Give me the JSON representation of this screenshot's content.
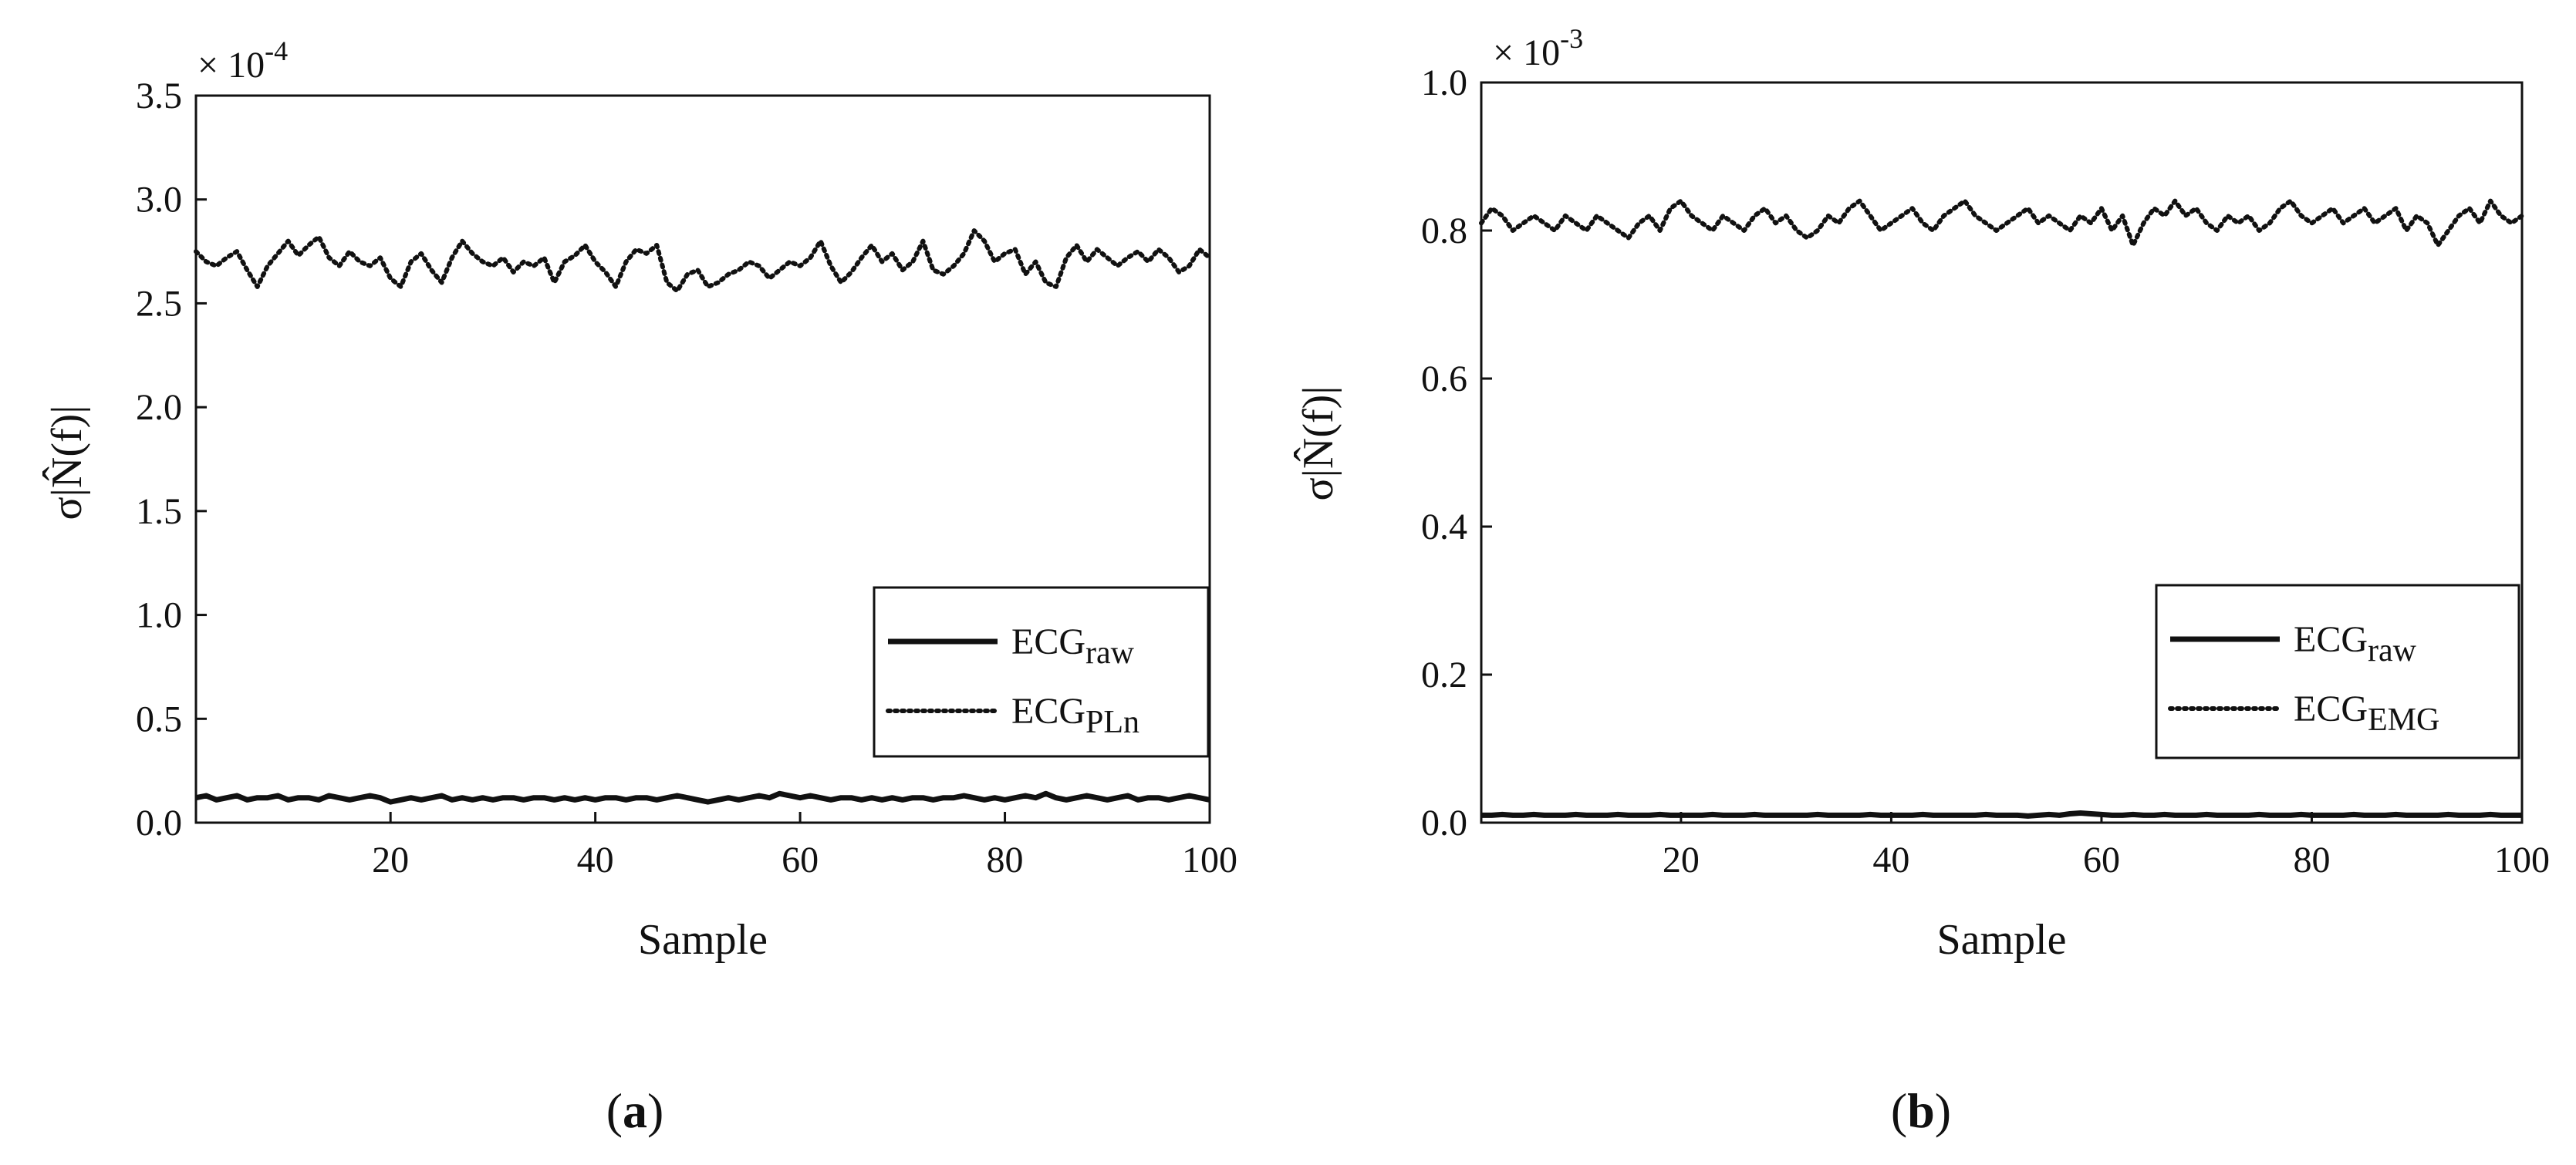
{
  "chart_data": [
    {
      "type": "line",
      "panel_label": "(a)",
      "panel_letter": "a",
      "xlabel": "Sample",
      "ylabel": "σ|N̂(f)|",
      "scale_note": "× 10",
      "scale_exponent": "-4",
      "xlim": [
        1,
        100
      ],
      "ylim": [
        0.0,
        3.5
      ],
      "xticks": [
        20,
        40,
        60,
        80,
        100
      ],
      "yticks": [
        0.0,
        0.5,
        1.0,
        1.5,
        2.0,
        2.5,
        3.0,
        3.5
      ],
      "grid": false,
      "legend_position": "lower-right",
      "series": [
        {
          "name": "ECGraw",
          "name_base": "ECG",
          "name_sub": "raw",
          "style": "solid",
          "color": "#111111",
          "values": [
            0.12,
            0.13,
            0.11,
            0.12,
            0.13,
            0.11,
            0.12,
            0.12,
            0.13,
            0.11,
            0.12,
            0.12,
            0.11,
            0.13,
            0.12,
            0.11,
            0.12,
            0.13,
            0.12,
            0.1,
            0.11,
            0.12,
            0.11,
            0.12,
            0.13,
            0.11,
            0.12,
            0.11,
            0.12,
            0.11,
            0.12,
            0.12,
            0.11,
            0.12,
            0.12,
            0.11,
            0.12,
            0.11,
            0.12,
            0.11,
            0.12,
            0.12,
            0.11,
            0.12,
            0.12,
            0.11,
            0.12,
            0.13,
            0.12,
            0.11,
            0.1,
            0.11,
            0.12,
            0.11,
            0.12,
            0.13,
            0.12,
            0.14,
            0.13,
            0.12,
            0.13,
            0.12,
            0.11,
            0.12,
            0.12,
            0.11,
            0.12,
            0.11,
            0.12,
            0.11,
            0.12,
            0.12,
            0.11,
            0.12,
            0.12,
            0.13,
            0.12,
            0.11,
            0.12,
            0.11,
            0.12,
            0.13,
            0.12,
            0.14,
            0.12,
            0.11,
            0.12,
            0.13,
            0.12,
            0.11,
            0.12,
            0.13,
            0.11,
            0.12,
            0.12,
            0.11,
            0.12,
            0.13,
            0.12,
            0.11
          ]
        },
        {
          "name": "ECGPLn",
          "name_base": "ECG",
          "name_sub": "PLn",
          "style": "dotted",
          "color": "#111111",
          "values": [
            2.75,
            2.7,
            2.68,
            2.72,
            2.75,
            2.66,
            2.58,
            2.68,
            2.74,
            2.8,
            2.73,
            2.78,
            2.82,
            2.72,
            2.68,
            2.75,
            2.7,
            2.68,
            2.72,
            2.62,
            2.58,
            2.7,
            2.74,
            2.66,
            2.6,
            2.72,
            2.8,
            2.74,
            2.7,
            2.68,
            2.72,
            2.65,
            2.7,
            2.68,
            2.72,
            2.6,
            2.7,
            2.73,
            2.78,
            2.7,
            2.65,
            2.58,
            2.7,
            2.76,
            2.74,
            2.78,
            2.6,
            2.56,
            2.64,
            2.66,
            2.58,
            2.6,
            2.64,
            2.66,
            2.7,
            2.68,
            2.62,
            2.66,
            2.7,
            2.68,
            2.72,
            2.8,
            2.68,
            2.6,
            2.65,
            2.72,
            2.78,
            2.7,
            2.74,
            2.66,
            2.7,
            2.8,
            2.66,
            2.64,
            2.68,
            2.74,
            2.85,
            2.8,
            2.7,
            2.74,
            2.76,
            2.64,
            2.7,
            2.6,
            2.58,
            2.72,
            2.78,
            2.7,
            2.76,
            2.72,
            2.68,
            2.72,
            2.75,
            2.7,
            2.76,
            2.72,
            2.65,
            2.68,
            2.76,
            2.72
          ]
        }
      ]
    },
    {
      "type": "line",
      "panel_label": "(b)",
      "panel_letter": "b",
      "xlabel": "Sample",
      "ylabel": "σ|N̂(f)|",
      "scale_note": "× 10",
      "scale_exponent": "-3",
      "xlim": [
        1,
        100
      ],
      "ylim": [
        0.0,
        1.0
      ],
      "xticks": [
        20,
        40,
        60,
        80,
        100
      ],
      "yticks": [
        0.0,
        0.2,
        0.4,
        0.6,
        0.8,
        1.0
      ],
      "grid": false,
      "legend_position": "lower-right",
      "series": [
        {
          "name": "ECGraw",
          "name_base": "ECG",
          "name_sub": "raw",
          "style": "solid",
          "color": "#111111",
          "values": [
            0.01,
            0.01,
            0.011,
            0.01,
            0.01,
            0.011,
            0.01,
            0.01,
            0.01,
            0.011,
            0.01,
            0.01,
            0.01,
            0.011,
            0.01,
            0.01,
            0.01,
            0.011,
            0.01,
            0.01,
            0.01,
            0.01,
            0.011,
            0.01,
            0.01,
            0.01,
            0.011,
            0.01,
            0.01,
            0.01,
            0.01,
            0.01,
            0.011,
            0.01,
            0.01,
            0.01,
            0.01,
            0.011,
            0.01,
            0.01,
            0.01,
            0.01,
            0.011,
            0.01,
            0.01,
            0.01,
            0.01,
            0.01,
            0.011,
            0.01,
            0.01,
            0.01,
            0.009,
            0.01,
            0.011,
            0.01,
            0.012,
            0.013,
            0.012,
            0.011,
            0.01,
            0.01,
            0.011,
            0.01,
            0.01,
            0.011,
            0.01,
            0.01,
            0.01,
            0.011,
            0.01,
            0.01,
            0.01,
            0.01,
            0.011,
            0.01,
            0.01,
            0.01,
            0.011,
            0.01,
            0.01,
            0.01,
            0.01,
            0.011,
            0.01,
            0.01,
            0.01,
            0.011,
            0.01,
            0.01,
            0.01,
            0.01,
            0.011,
            0.01,
            0.01,
            0.01,
            0.011,
            0.01,
            0.01,
            0.01
          ]
        },
        {
          "name": "ECGEMG",
          "name_base": "ECG",
          "name_sub": "EMG",
          "style": "dotted",
          "color": "#111111",
          "values": [
            0.81,
            0.83,
            0.82,
            0.8,
            0.81,
            0.82,
            0.81,
            0.8,
            0.82,
            0.81,
            0.8,
            0.82,
            0.81,
            0.8,
            0.79,
            0.81,
            0.82,
            0.8,
            0.83,
            0.84,
            0.82,
            0.81,
            0.8,
            0.82,
            0.81,
            0.8,
            0.82,
            0.83,
            0.81,
            0.82,
            0.8,
            0.79,
            0.8,
            0.82,
            0.81,
            0.83,
            0.84,
            0.82,
            0.8,
            0.81,
            0.82,
            0.83,
            0.81,
            0.8,
            0.82,
            0.83,
            0.84,
            0.82,
            0.81,
            0.8,
            0.81,
            0.82,
            0.83,
            0.81,
            0.82,
            0.81,
            0.8,
            0.82,
            0.81,
            0.83,
            0.8,
            0.82,
            0.78,
            0.81,
            0.83,
            0.82,
            0.84,
            0.82,
            0.83,
            0.81,
            0.8,
            0.82,
            0.81,
            0.82,
            0.8,
            0.81,
            0.83,
            0.84,
            0.82,
            0.81,
            0.82,
            0.83,
            0.81,
            0.82,
            0.83,
            0.81,
            0.82,
            0.83,
            0.8,
            0.82,
            0.81,
            0.78,
            0.8,
            0.82,
            0.83,
            0.81,
            0.84,
            0.82,
            0.81,
            0.82
          ]
        }
      ]
    }
  ]
}
